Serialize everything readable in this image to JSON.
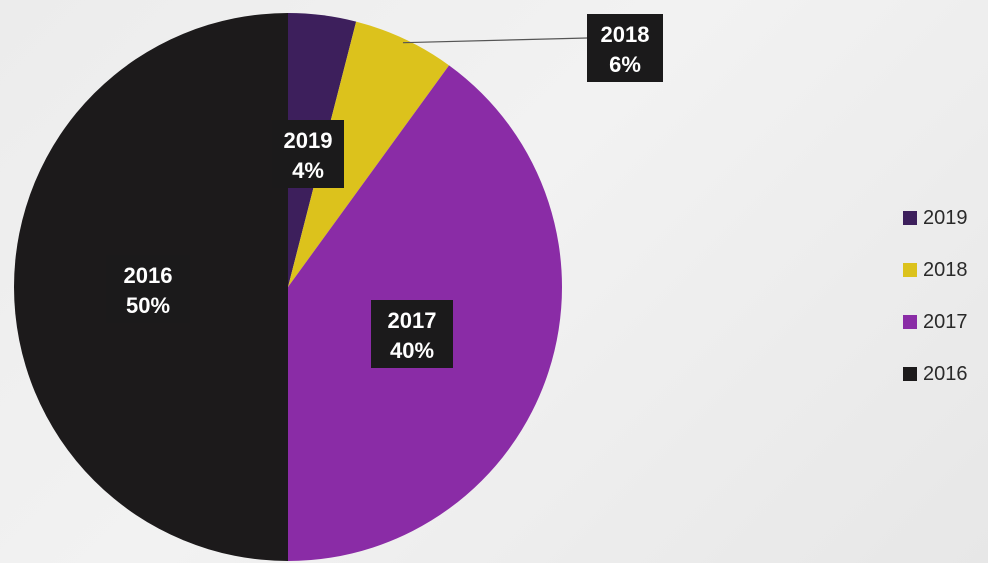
{
  "chart_data": {
    "type": "pie",
    "slices": [
      {
        "label": "2019",
        "value": 4,
        "display": "4%",
        "color": "#3d1f5c"
      },
      {
        "label": "2018",
        "value": 6,
        "display": "6%",
        "color": "#dcc21c"
      },
      {
        "label": "2017",
        "value": 40,
        "display": "40%",
        "color": "#8a2ca6"
      },
      {
        "label": "2016",
        "value": 50,
        "display": "50%",
        "color": "#1c1a1b"
      }
    ],
    "legend": {
      "position": "right",
      "entries": [
        "2019",
        "2018",
        "2017",
        "2016"
      ]
    },
    "title": ""
  }
}
